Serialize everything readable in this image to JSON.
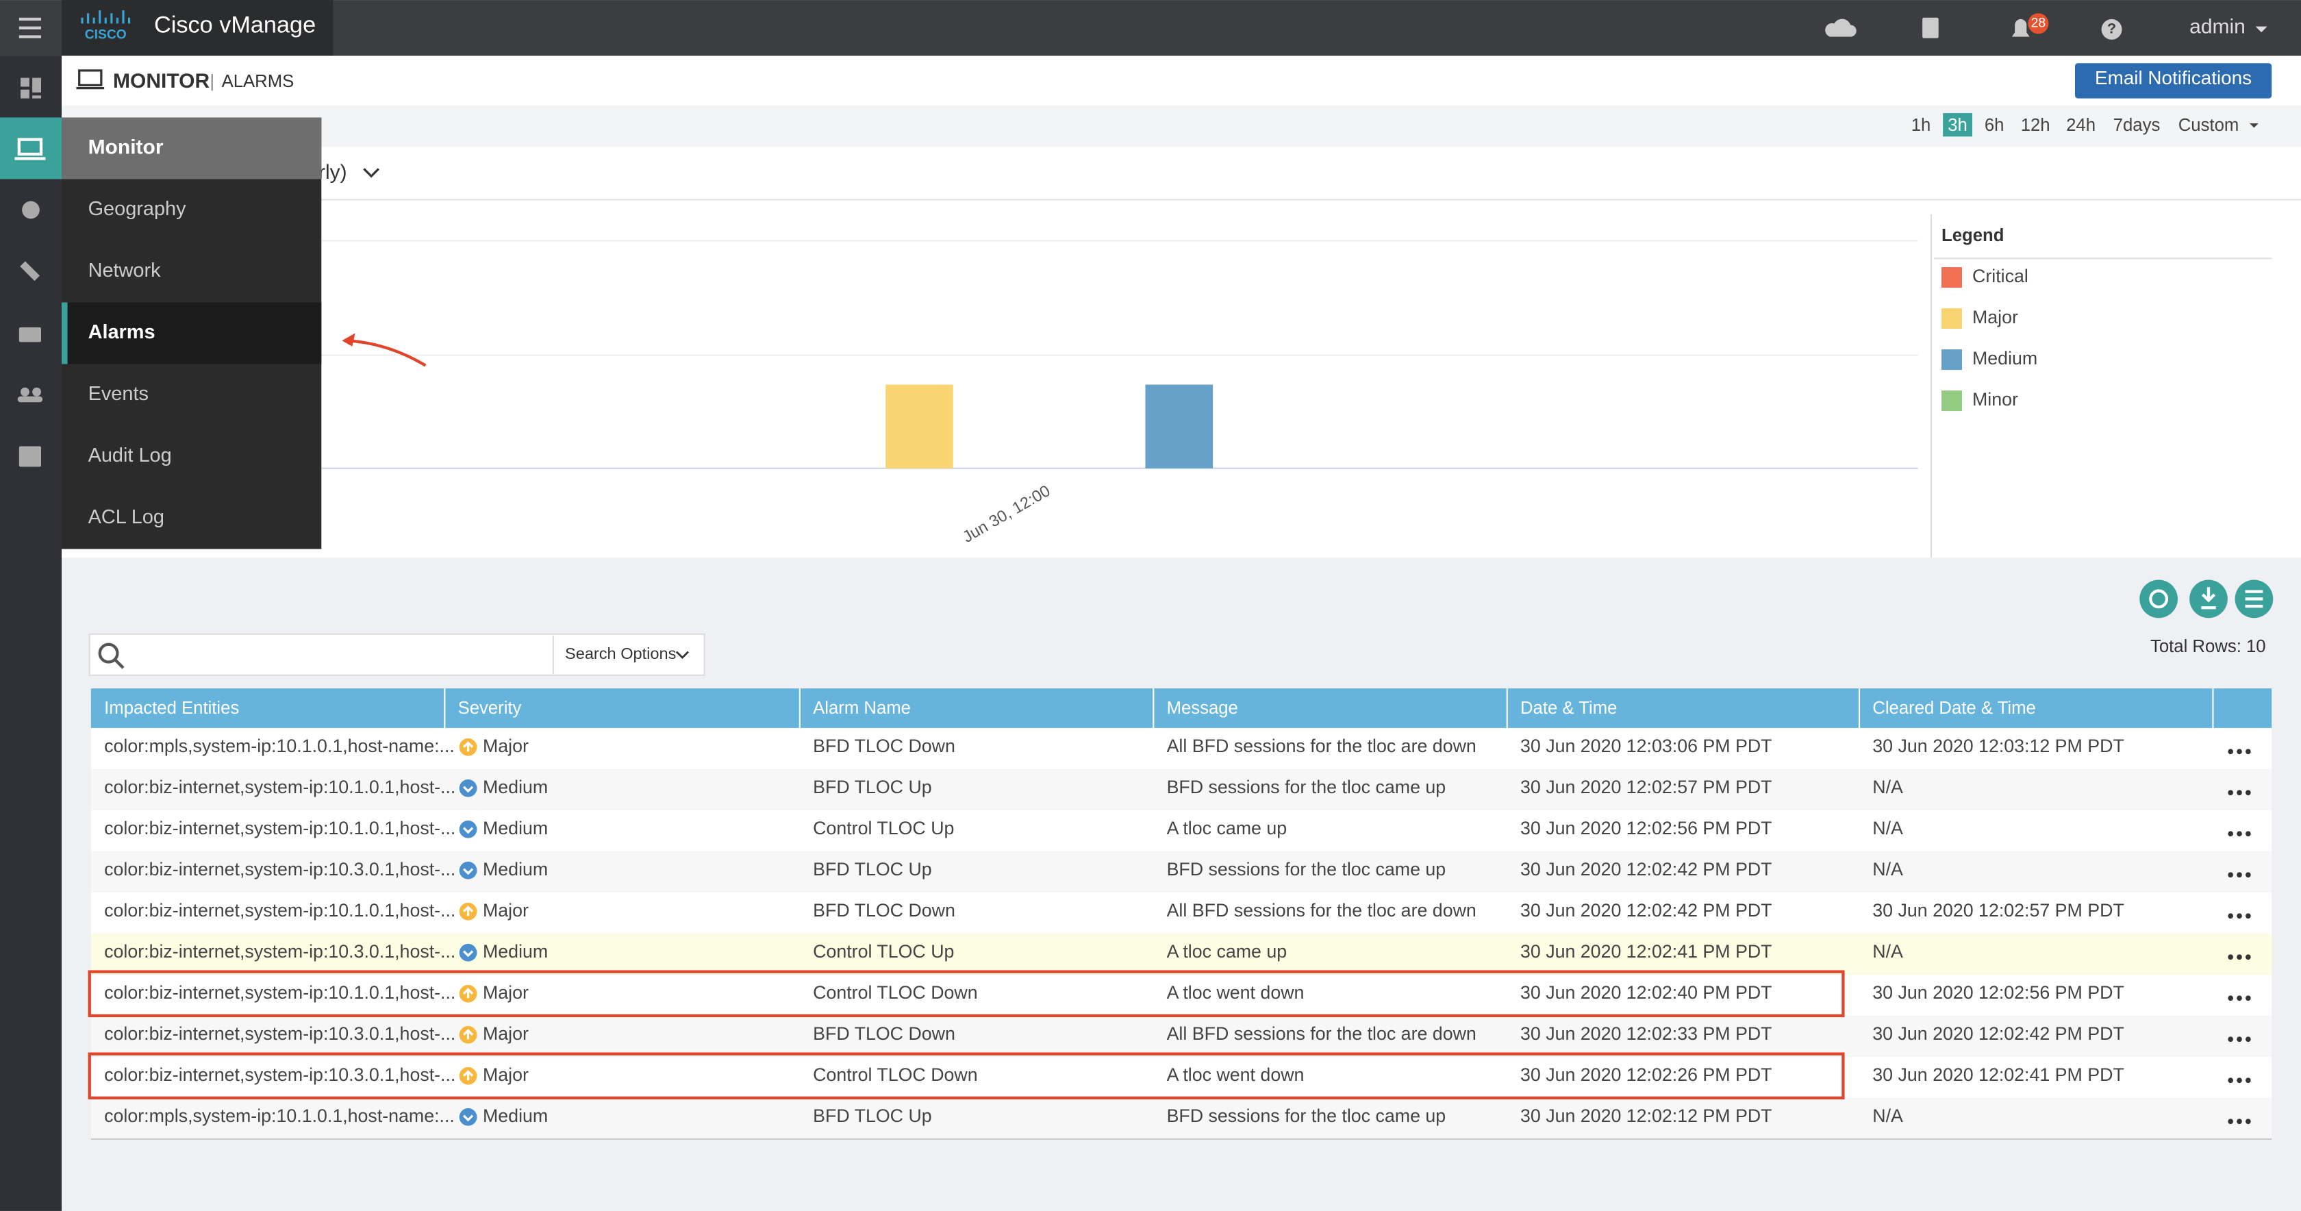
{
  "header": {
    "logo": "CISCO",
    "app_title": "Cisco vManage",
    "notifications": "28",
    "user": "admin"
  },
  "breadcrumb": {
    "section": "MONITOR",
    "separator": "|",
    "page": "ALARMS"
  },
  "email_button": "Email Notifications",
  "time_ranges": [
    "1h",
    "3h",
    "6h",
    "12h",
    "24h",
    "7days",
    "Custom"
  ],
  "selected_time_range": 1,
  "chart_data": {
    "type": "bar",
    "dropdown_fragment": "rly)",
    "categories": [
      "Jun 30, 12:00"
    ],
    "legend_title": "Legend",
    "series": [
      {
        "name": "Critical",
        "color": "#ef7052",
        "values": [
          0
        ]
      },
      {
        "name": "Major",
        "color": "#f9d572",
        "values": [
          5
        ]
      },
      {
        "name": "Medium",
        "color": "#65a1c9",
        "values": [
          5
        ]
      },
      {
        "name": "Minor",
        "color": "#95cc84",
        "values": [
          0
        ]
      }
    ],
    "ylim": [
      0,
      13.6
    ]
  },
  "menu": {
    "title": "Monitor",
    "items": [
      "Geography",
      "Network",
      "Alarms",
      "Events",
      "Audit Log",
      "ACL Log"
    ],
    "selected": 2
  },
  "search_options": "Search Options",
  "total_rows": "Total Rows: 10",
  "table": {
    "columns": [
      "Impacted Entities",
      "Severity",
      "Alarm Name",
      "Message",
      "Date & Time",
      "Cleared Date & Time"
    ],
    "rows": [
      [
        "color:mpls,system-ip:10.1.0.1,host-name:...",
        "Major",
        "BFD TLOC Down",
        "All BFD sessions for the tloc are down",
        "30 Jun 2020 12:03:06 PM PDT",
        "30 Jun 2020 12:03:12 PM PDT"
      ],
      [
        "color:biz-internet,system-ip:10.1.0.1,host-...",
        "Medium",
        "BFD TLOC Up",
        "BFD sessions for the tloc came up",
        "30 Jun 2020 12:02:57 PM PDT",
        "N/A"
      ],
      [
        "color:biz-internet,system-ip:10.1.0.1,host-...",
        "Medium",
        "Control TLOC Up",
        "A tloc came up",
        "30 Jun 2020 12:02:56 PM PDT",
        "N/A"
      ],
      [
        "color:biz-internet,system-ip:10.3.0.1,host-...",
        "Medium",
        "BFD TLOC Up",
        "BFD sessions for the tloc came up",
        "30 Jun 2020 12:02:42 PM PDT",
        "N/A"
      ],
      [
        "color:biz-internet,system-ip:10.1.0.1,host-...",
        "Major",
        "BFD TLOC Down",
        "All BFD sessions for the tloc are down",
        "30 Jun 2020 12:02:42 PM PDT",
        "30 Jun 2020 12:02:57 PM PDT"
      ],
      [
        "color:biz-internet,system-ip:10.3.0.1,host-...",
        "Medium",
        "Control TLOC Up",
        "A tloc came up",
        "30 Jun 2020 12:02:41 PM PDT",
        "N/A"
      ],
      [
        "color:biz-internet,system-ip:10.1.0.1,host-...",
        "Major",
        "Control TLOC Down",
        "A tloc went down",
        "30 Jun 2020 12:02:40 PM PDT",
        "30 Jun 2020 12:02:56 PM PDT"
      ],
      [
        "color:biz-internet,system-ip:10.3.0.1,host-...",
        "Major",
        "BFD TLOC Down",
        "All BFD sessions for the tloc are down",
        "30 Jun 2020 12:02:33 PM PDT",
        "30 Jun 2020 12:02:42 PM PDT"
      ],
      [
        "color:biz-internet,system-ip:10.3.0.1,host-...",
        "Major",
        "Control TLOC Down",
        "A tloc went down",
        "30 Jun 2020 12:02:26 PM PDT",
        "30 Jun 2020 12:02:41 PM PDT"
      ],
      [
        "color:mpls,system-ip:10.1.0.1,host-name:...",
        "Medium",
        "BFD TLOC Up",
        "BFD sessions for the tloc came up",
        "30 Jun 2020 12:02:12 PM PDT",
        "N/A"
      ]
    ],
    "hover_row": 5,
    "highlighted_rows": [
      6,
      8
    ]
  }
}
